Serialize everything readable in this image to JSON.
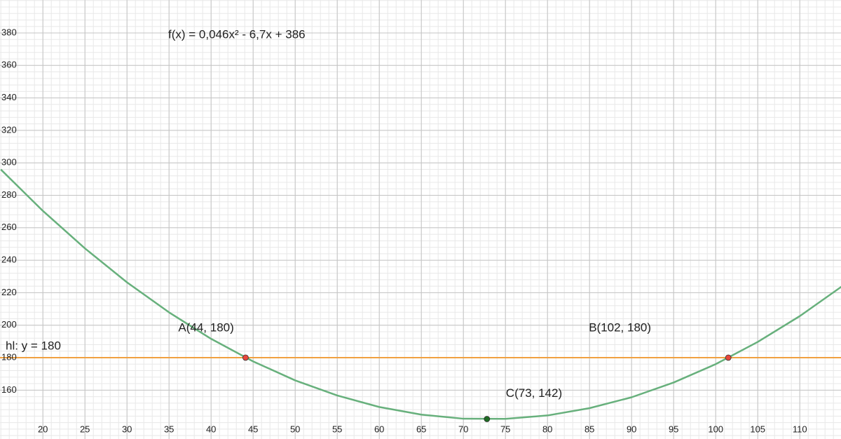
{
  "chart_data": {
    "type": "line",
    "function_label": "f(x) = 0,046x² - 6,7x + 386",
    "function_label_color": "#2e8b3f",
    "color": "#67b07c",
    "x": [
      15,
      20,
      25,
      30,
      35,
      40,
      45,
      50,
      55,
      60,
      65,
      70,
      75,
      80,
      85,
      90,
      95,
      100,
      105,
      110,
      115
    ],
    "values": [
      295.9,
      270.4,
      247.3,
      226.4,
      207.9,
      191.6,
      177.7,
      166,
      156.7,
      149.6,
      144.9,
      142.4,
      142.3,
      144.4,
      148.9,
      155.6,
      164.7,
      176,
      189.7,
      205.6,
      223.9
    ],
    "hlines": [
      {
        "label": "hl: y = 180",
        "value": 180,
        "color": "#f0a040",
        "label_color": "#e8961e"
      }
    ],
    "points": [
      {
        "label": "A(44, 180)",
        "x": 44.1,
        "y": 180,
        "color": "#e8463c"
      },
      {
        "label": "B(102, 180)",
        "x": 101.5,
        "y": 180,
        "color": "#e8463c"
      },
      {
        "label": "C(73, 142)",
        "x": 72.8,
        "y": 142.2,
        "color": "#1e6b23"
      }
    ],
    "xlim": [
      14.9,
      114.9
    ],
    "ylim": [
      129.9,
      400.3
    ],
    "xticks": [
      20,
      25,
      30,
      35,
      40,
      45,
      50,
      55,
      60,
      65,
      70,
      75,
      80,
      85,
      90,
      95,
      100,
      105,
      110
    ],
    "yticks": [
      160,
      180,
      200,
      220,
      240,
      260,
      280,
      300,
      320,
      340,
      360,
      380
    ],
    "grid": true
  }
}
